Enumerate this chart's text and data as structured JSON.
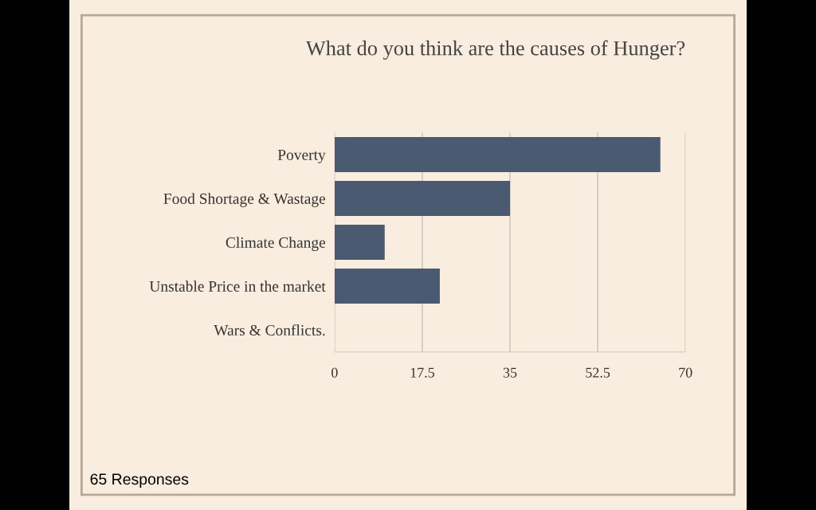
{
  "chart_data": {
    "type": "bar",
    "title": "What do you think are the causes of Hunger?",
    "orientation": "horizontal",
    "categories": [
      "Poverty",
      "Food Shortage & Wastage",
      "Climate Change",
      "Unstable Price in the market",
      "Wars & Conflicts."
    ],
    "values": [
      65,
      35,
      10,
      21,
      0
    ],
    "color": "#4a5a70",
    "xlim": [
      0,
      70
    ],
    "xticks": [
      0,
      17.5,
      35,
      52.5,
      70
    ],
    "grid": "x",
    "annotations": [
      "65 Responses"
    ]
  }
}
